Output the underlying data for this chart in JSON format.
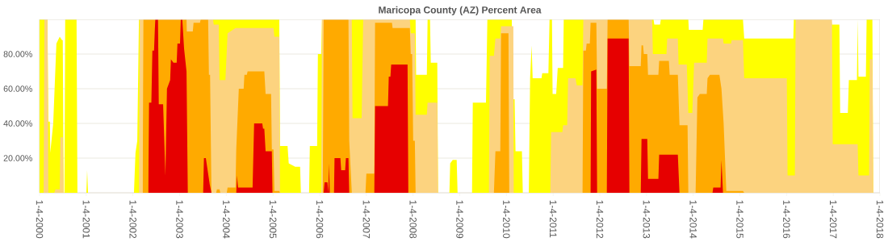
{
  "chart_data": {
    "type": "area",
    "title": "Maricopa County (AZ) Percent Area",
    "xlim": [
      "2000-01-04",
      "2018-01-04"
    ],
    "xticks": [
      {
        "value": "2000-01-04",
        "label": "1-4-2000"
      },
      {
        "value": "2001-01-04",
        "label": "1-4-2001"
      },
      {
        "value": "2002-01-04",
        "label": "1-4-2002"
      },
      {
        "value": "2003-01-04",
        "label": "1-4-2003"
      },
      {
        "value": "2004-01-04",
        "label": "1-4-2004"
      },
      {
        "value": "2005-01-04",
        "label": "1-4-2005"
      },
      {
        "value": "2006-01-04",
        "label": "1-4-2006"
      },
      {
        "value": "2007-01-04",
        "label": "1-4-2007"
      },
      {
        "value": "2008-01-04",
        "label": "1-4-2008"
      },
      {
        "value": "2009-01-04",
        "label": "1-4-2009"
      },
      {
        "value": "2010-01-04",
        "label": "1-4-2010"
      },
      {
        "value": "2011-01-04",
        "label": "1-4-2011"
      },
      {
        "value": "2012-01-04",
        "label": "1-4-2012"
      },
      {
        "value": "2013-01-04",
        "label": "1-4-2013"
      },
      {
        "value": "2014-01-04",
        "label": "1-4-2014"
      },
      {
        "value": "2015-01-04",
        "label": "1-4-2015"
      },
      {
        "value": "2016-01-04",
        "label": "1-4-2016"
      },
      {
        "value": "2017-01-04",
        "label": "1-4-2017"
      },
      {
        "value": "2018-01-04",
        "label": "1-4-2018"
      }
    ],
    "ylim": [
      0,
      100
    ],
    "yticks": [
      {
        "value": 20,
        "label": "20.00%"
      },
      {
        "value": 40,
        "label": "40.00%"
      },
      {
        "value": 60,
        "label": "60.00%"
      },
      {
        "value": 80,
        "label": "80.00%"
      }
    ],
    "grid": "y",
    "series": [
      {
        "color": "#ffff00",
        "x": [
          "2000-01-04",
          "2000-03-06",
          "2000-03-13",
          "2000-03-25",
          "2000-03-28",
          "2000-04-20",
          "2000-05-15",
          "2000-06-10",
          "2000-06-28",
          "2000-07-04",
          "2000-07-11",
          "2000-07-17",
          "2000-07-23",
          "2000-10-20",
          "2000-10-27",
          "2001-01-05",
          "2001-01-11",
          "2001-01-18",
          "2002-01-12",
          "2002-01-24",
          "2002-02-07",
          "2002-02-20",
          "2005-02-22",
          "2005-02-28",
          "2005-04-28",
          "2005-05-07",
          "2005-06-27",
          "2005-08-04",
          "2005-08-10",
          "2005-10-13",
          "2005-10-19",
          "2005-12-15",
          "2005-12-21",
          "2006-01-16",
          "2006-01-22",
          "2008-01-24",
          "2008-01-28",
          "2008-04-21",
          "2008-04-27",
          "2008-05-16",
          "2008-05-22",
          "2008-07-12",
          "2008-07-18",
          "2008-10-15",
          "2008-10-21",
          "2008-11-10",
          "2008-12-11",
          "2008-12-18",
          "2009-04-10",
          "2009-04-16",
          "2009-07-28",
          "2009-08-08",
          "2010-02-15",
          "2010-02-21",
          "2010-03-09",
          "2010-03-16",
          "2010-05-05",
          "2010-05-12",
          "2010-06-28",
          "2010-07-08",
          "2010-07-20",
          "2010-07-28",
          "2010-10-05",
          "2010-10-11",
          "2010-11-28",
          "2010-12-07",
          "2010-12-26",
          "2010-12-31",
          "2011-01-28",
          "2011-02-09",
          "2011-03-23",
          "2011-03-28",
          "2013-02-28",
          "2013-03-06",
          "2013-04-20",
          "2013-04-26",
          "2013-11-27",
          "2013-12-01",
          "2014-03-19",
          "2014-03-25",
          "2015-01-28",
          "2015-02-07",
          "2016-02-26",
          "2016-03-01",
          "2016-12-19",
          "2016-12-25",
          "2017-02-21",
          "2017-02-27",
          "2017-04-28",
          "2017-05-06",
          "2017-07-08",
          "2017-07-14",
          "2017-07-20",
          "2017-09-16",
          "2017-09-22",
          "2017-11-06",
          "2017-11-13"
        ],
        "values": [
          100,
          100,
          41,
          41,
          23,
          40,
          86,
          90,
          88,
          88,
          0,
          0,
          100,
          100,
          0,
          0,
          13,
          0,
          0,
          23,
          30,
          100,
          100,
          27,
          27,
          17,
          15,
          15,
          0,
          0,
          27,
          27,
          80,
          80,
          100,
          100,
          68,
          68,
          100,
          100,
          75,
          75,
          0,
          0,
          17,
          19,
          19,
          0,
          0,
          52,
          52,
          100,
          100,
          54,
          54,
          24,
          24,
          0,
          0,
          66,
          85,
          66,
          66,
          69,
          69,
          100,
          100,
          57,
          57,
          72,
          72,
          100,
          100,
          97,
          97,
          100,
          100,
          94,
          94,
          100,
          100,
          89,
          89,
          100,
          100,
          97,
          97,
          46,
          46,
          65,
          65,
          100,
          67,
          67,
          100,
          100,
          0
        ]
      },
      {
        "color": "#fcd37f",
        "x": [
          "2000-02-05",
          "2000-02-11",
          "2000-03-06",
          "2000-03-13",
          "2000-04-28",
          "2000-05-08",
          "2000-06-10",
          "2000-06-16",
          "2000-07-04",
          "2000-07-11",
          "2002-02-20",
          "2002-02-26",
          "2003-09-22",
          "2003-09-28",
          "2003-11-06",
          "2003-11-12",
          "2003-12-28",
          "2004-01-14",
          "2004-03-16",
          "2005-01-08",
          "2005-01-15",
          "2005-02-22",
          "2005-02-28",
          "2006-01-16",
          "2006-01-22",
          "2006-09-12",
          "2006-09-18",
          "2006-11-28",
          "2006-12-10",
          "2007-12-10",
          "2007-12-17",
          "2008-01-18",
          "2008-01-24",
          "2008-04-21",
          "2008-04-27",
          "2008-07-12",
          "2008-07-18",
          "2009-08-20",
          "2009-08-26",
          "2009-09-28",
          "2009-10-10",
          "2009-11-17",
          "2009-11-23",
          "2010-02-27",
          "2010-03-02",
          "2010-12-13",
          "2010-12-19",
          "2011-03-17",
          "2011-03-23",
          "2011-04-24",
          "2011-05-01",
          "2011-06-28",
          "2011-07-08",
          "2011-08-22",
          "2011-08-28",
          "2013-02-17",
          "2013-02-23",
          "2013-06-09",
          "2013-06-15",
          "2013-09-06",
          "2013-09-12",
          "2013-11-15",
          "2013-11-27",
          "2013-12-28",
          "2014-01-11",
          "2014-04-20",
          "2014-04-26",
          "2014-08-25",
          "2014-08-30",
          "2014-10-27",
          "2014-11-01",
          "2015-01-28",
          "2015-02-07",
          "2016-01-06",
          "2016-01-12",
          "2016-03-09",
          "2016-03-15",
          "2016-12-25",
          "2016-12-31",
          "2017-07-14",
          "2017-07-20",
          "2017-10-11",
          "2017-10-17",
          "2017-11-06",
          "2017-11-13"
        ],
        "values": [
          0,
          100,
          100,
          0,
          0,
          2,
          2,
          32,
          32,
          0,
          0,
          100,
          100,
          97,
          97,
          65,
          65,
          92,
          95,
          95,
          90,
          90,
          0,
          0,
          100,
          100,
          43,
          43,
          100,
          100,
          92,
          92,
          45,
          45,
          52,
          52,
          0,
          0,
          79,
          79,
          89,
          89,
          96,
          96,
          0,
          0,
          35,
          35,
          39,
          39,
          66,
          66,
          62,
          62,
          100,
          100,
          80,
          80,
          89,
          89,
          74,
          74,
          46,
          46,
          75,
          75,
          89,
          89,
          86,
          86,
          88,
          88,
          66,
          66,
          10,
          10,
          100,
          100,
          28,
          28,
          10,
          10,
          77,
          77,
          0
        ]
      },
      {
        "color": "#ffaa00",
        "x": [
          "2002-03-21",
          "2002-03-27",
          "2003-02-27",
          "2003-03-01",
          "2003-04-17",
          "2003-04-23",
          "2003-06-12",
          "2003-06-18",
          "2003-08-15",
          "2003-08-21",
          "2003-08-30",
          "2003-09-10",
          "2003-10-17",
          "2003-10-23",
          "2003-11-12",
          "2003-11-18",
          "2004-01-08",
          "2004-01-14",
          "2004-03-16",
          "2004-03-22",
          "2004-04-11",
          "2004-05-19",
          "2004-05-25",
          "2004-06-13",
          "2004-06-19",
          "2004-10-28",
          "2004-11-07",
          "2004-12-20",
          "2004-12-26",
          "2005-01-08",
          "2005-01-15",
          "2005-02-22",
          "2005-02-28",
          "2006-01-28",
          "2006-02-04",
          "2006-08-17",
          "2006-08-23",
          "2006-09-12",
          "2006-12-28",
          "2007-01-04",
          "2007-03-07",
          "2007-03-13",
          "2007-07-23",
          "2007-07-28",
          "2007-12-10",
          "2007-12-17",
          "2007-12-28",
          "2008-01-05",
          "2008-01-18",
          "2008-01-24",
          "2009-09-28",
          "2009-10-10",
          "2009-11-17",
          "2009-11-23",
          "2010-01-20",
          "2010-01-26",
          "2011-08-22",
          "2011-08-28",
          "2011-09-17",
          "2011-09-23",
          "2011-10-18",
          "2011-10-24",
          "2011-12-08",
          "2011-12-14",
          "2012-02-28",
          "2012-03-05",
          "2012-08-17",
          "2012-08-23",
          "2012-11-20",
          "2012-11-26",
          "2012-12-08",
          "2012-12-14",
          "2013-01-10",
          "2013-01-16",
          "2013-04-07",
          "2013-04-13",
          "2013-06-28",
          "2013-07-04",
          "2013-09-06",
          "2013-09-19",
          "2013-11-21",
          "2013-11-27",
          "2014-01-23",
          "2014-02-06",
          "2014-02-25",
          "2014-04-20",
          "2014-04-26",
          "2014-05-15",
          "2014-07-28",
          "2014-08-13",
          "2014-08-30",
          "2014-09-20",
          "2015-01-28",
          "2015-02-07"
        ],
        "values": [
          0,
          100,
          100,
          93,
          93,
          98,
          98,
          100,
          100,
          68,
          68,
          0,
          0,
          2,
          2,
          0,
          0,
          3,
          3,
          25,
          60,
          60,
          68,
          68,
          70,
          70,
          57,
          57,
          25,
          25,
          1,
          1,
          0,
          0,
          100,
          100,
          30,
          0,
          0,
          11,
          11,
          98,
          98,
          95,
          95,
          80,
          80,
          30,
          30,
          0,
          0,
          24,
          24,
          92,
          92,
          0,
          0,
          82,
          82,
          86,
          86,
          98,
          98,
          60,
          60,
          100,
          100,
          73,
          73,
          85,
          85,
          80,
          80,
          68,
          68,
          76,
          76,
          68,
          68,
          39,
          39,
          0,
          0,
          55,
          57,
          57,
          66,
          68,
          68,
          60,
          40,
          1,
          1,
          0
        ]
      },
      {
        "color": "#e60000",
        "x": [
          "2002-05-04",
          "2002-05-10",
          "2002-05-28",
          "2002-06-05",
          "2002-06-18",
          "2002-06-24",
          "2002-06-28",
          "2002-07-19",
          "2002-07-25",
          "2002-08-28",
          "2002-09-15",
          "2002-09-27",
          "2002-10-22",
          "2002-10-28",
          "2002-11-17",
          "2002-12-12",
          "2002-12-18",
          "2003-01-07",
          "2003-01-13",
          "2003-01-25",
          "2003-02-08",
          "2003-02-27",
          "2003-03-09",
          "2003-07-07",
          "2003-07-13",
          "2003-07-28",
          "2003-08-27",
          "2003-09-10",
          "2004-03-22",
          "2004-03-28",
          "2004-04-05",
          "2004-07-28",
          "2004-08-09",
          "2004-10-12",
          "2004-10-18",
          "2004-10-28",
          "2004-11-07",
          "2004-12-26",
          "2004-12-31",
          "2006-02-04",
          "2006-02-11",
          "2006-03-06",
          "2006-03-12",
          "2006-03-18",
          "2006-03-24",
          "2006-04-26",
          "2006-04-30",
          "2006-06-15",
          "2006-06-21",
          "2006-07-22",
          "2006-07-28",
          "2006-08-17",
          "2006-08-23",
          "2007-03-07",
          "2007-03-13",
          "2007-06-22",
          "2007-06-28",
          "2007-07-11",
          "2007-07-17",
          "2007-11-22",
          "2007-11-28",
          "2011-10-24",
          "2011-10-28",
          "2011-12-08",
          "2011-12-14",
          "2012-02-28",
          "2012-03-05",
          "2012-08-17",
          "2012-08-23",
          "2012-11-20",
          "2012-11-26",
          "2013-01-10",
          "2013-01-16",
          "2013-04-07",
          "2013-04-13",
          "2013-09-06",
          "2013-09-19",
          "2014-06-04",
          "2014-06-10",
          "2014-08-06",
          "2014-08-13",
          "2014-08-25"
        ],
        "values": [
          0,
          52,
          52,
          82,
          82,
          94,
          100,
          100,
          51,
          51,
          10,
          60,
          65,
          77,
          75,
          75,
          86,
          86,
          100,
          100,
          83,
          70,
          0,
          0,
          20,
          20,
          5,
          0,
          0,
          10,
          3,
          3,
          40,
          40,
          37,
          37,
          24,
          24,
          0,
          0,
          6,
          6,
          0,
          17,
          0,
          0,
          20,
          20,
          13,
          13,
          20,
          20,
          0,
          0,
          50,
          50,
          67,
          67,
          74,
          74,
          0,
          0,
          70,
          71,
          0,
          0,
          89,
          89,
          0,
          0,
          31,
          31,
          8,
          8,
          22,
          22,
          0,
          0,
          3,
          3,
          19,
          0
        ]
      }
    ]
  }
}
